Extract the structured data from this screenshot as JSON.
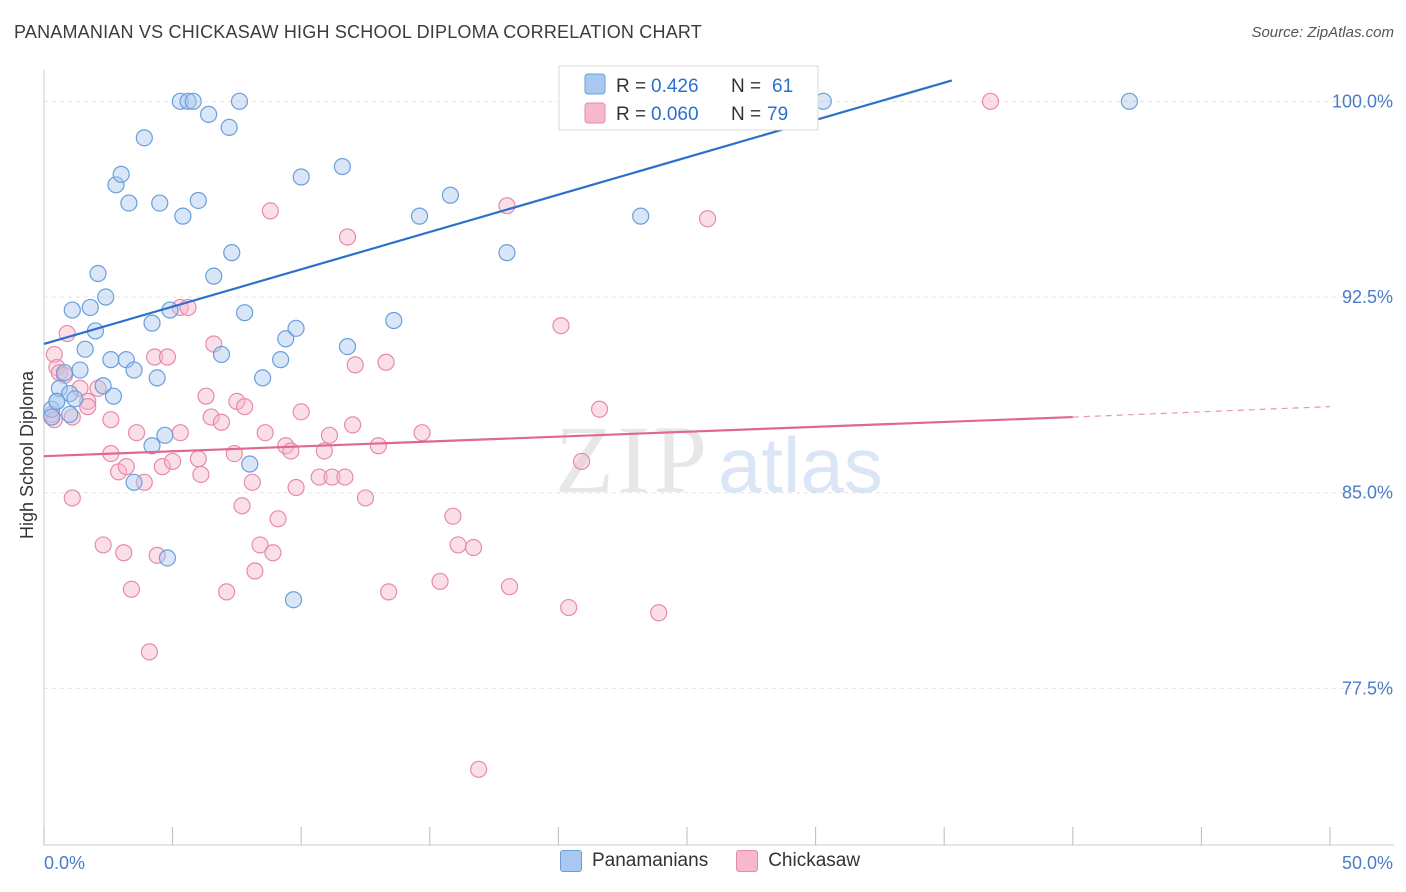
{
  "title": "PANAMANIAN VS CHICKASAW HIGH SCHOOL DIPLOMA CORRELATION CHART",
  "source": "Source: ZipAtlas.com",
  "watermark": {
    "zip": "ZIP",
    "atlas": "atlas"
  },
  "legend_top": [
    {
      "r_label": "R =",
      "r_value": "0.426",
      "n_label": "N =",
      "n_value": "61"
    },
    {
      "r_label": "R =",
      "r_value": "0.060",
      "n_label": "N =",
      "n_value": "79"
    }
  ],
  "legend_bottom": [
    {
      "label": "Panamanians"
    },
    {
      "label": "Chickasaw"
    }
  ],
  "colors": {
    "blue_fill": "#a8c8f0",
    "blue_stroke": "#6a9fdb",
    "blue_line": "#2a70cc",
    "pink_fill": "#f6b9cc",
    "pink_stroke": "#e98aa8",
    "pink_line": "#e06890",
    "tick_label": "#4a7cc8",
    "grid": "#e3e3e3"
  },
  "chart_data": {
    "type": "scatter",
    "title": "PANAMANIAN VS CHICKASAW HIGH SCHOOL DIPLOMA CORRELATION CHART",
    "xlabel": "",
    "ylabel": "High School Diploma",
    "xlim": [
      0,
      50
    ],
    "ylim": [
      71.5,
      101.2
    ],
    "x_tick_labels": [
      {
        "value": 0,
        "label": "0.0%"
      },
      {
        "value": 50,
        "label": "50.0%"
      }
    ],
    "y_ticks": [
      {
        "value": 77.5,
        "label": "77.5%"
      },
      {
        "value": 85.0,
        "label": "85.0%"
      },
      {
        "value": 92.5,
        "label": "92.5%"
      },
      {
        "value": 100.0,
        "label": "100.0%"
      }
    ],
    "series": [
      {
        "name": "Panamanians",
        "R": 0.426,
        "N": 61,
        "trend": {
          "x": [
            0,
            35.3
          ],
          "y": [
            90.7,
            100.8
          ]
        },
        "points": [
          [
            0.3,
            88.2
          ],
          [
            0.3,
            87.9
          ],
          [
            0.5,
            88.5
          ],
          [
            0.6,
            89.0
          ],
          [
            0.8,
            89.6
          ],
          [
            1.0,
            88.8
          ],
          [
            1.1,
            92.0
          ],
          [
            1.2,
            88.6
          ],
          [
            1.4,
            89.7
          ],
          [
            1.6,
            90.5
          ],
          [
            1.8,
            92.1
          ],
          [
            2.0,
            91.2
          ],
          [
            2.1,
            93.4
          ],
          [
            2.3,
            89.1
          ],
          [
            2.4,
            92.5
          ],
          [
            2.7,
            88.7
          ],
          [
            2.6,
            90.1
          ],
          [
            2.8,
            96.8
          ],
          [
            3.0,
            97.2
          ],
          [
            3.2,
            90.1
          ],
          [
            3.3,
            96.1
          ],
          [
            3.5,
            89.7
          ],
          [
            3.5,
            85.4
          ],
          [
            3.9,
            98.6
          ],
          [
            4.2,
            91.5
          ],
          [
            4.4,
            89.4
          ],
          [
            4.5,
            96.1
          ],
          [
            4.7,
            87.2
          ],
          [
            4.8,
            82.5
          ],
          [
            4.9,
            92.0
          ],
          [
            5.3,
            100.0
          ],
          [
            5.4,
            95.6
          ],
          [
            5.6,
            100.0
          ],
          [
            5.8,
            100.0
          ],
          [
            6.0,
            96.2
          ],
          [
            6.4,
            99.5
          ],
          [
            6.6,
            93.3
          ],
          [
            6.9,
            90.3
          ],
          [
            7.2,
            99.0
          ],
          [
            7.3,
            94.2
          ],
          [
            7.6,
            100.0
          ],
          [
            7.8,
            91.9
          ],
          [
            8.0,
            86.1
          ],
          [
            8.5,
            89.4
          ],
          [
            9.2,
            90.1
          ],
          [
            9.4,
            90.9
          ],
          [
            9.7,
            80.9
          ],
          [
            9.8,
            91.3
          ],
          [
            10.0,
            97.1
          ],
          [
            11.6,
            97.5
          ],
          [
            11.8,
            90.6
          ],
          [
            13.6,
            91.6
          ],
          [
            14.6,
            95.6
          ],
          [
            15.8,
            96.4
          ],
          [
            18.0,
            94.2
          ],
          [
            23.2,
            95.6
          ],
          [
            30.3,
            100.0
          ],
          [
            42.2,
            100.0
          ],
          [
            1.0,
            88.0
          ],
          [
            0.5,
            88.5
          ],
          [
            4.2,
            86.8
          ]
        ]
      },
      {
        "name": "Chickasaw",
        "R": 0.06,
        "N": 79,
        "trend": {
          "x": [
            0,
            40
          ],
          "y": [
            86.4,
            87.9
          ]
        },
        "trend_dashed": {
          "x": [
            40,
            50
          ],
          "y": [
            87.9,
            88.3
          ]
        },
        "points": [
          [
            0.3,
            88.0
          ],
          [
            0.4,
            87.8
          ],
          [
            0.4,
            90.3
          ],
          [
            0.5,
            89.8
          ],
          [
            0.6,
            89.6
          ],
          [
            0.8,
            89.5
          ],
          [
            0.9,
            91.1
          ],
          [
            1.1,
            87.9
          ],
          [
            1.1,
            84.8
          ],
          [
            1.4,
            89.0
          ],
          [
            1.7,
            88.5
          ],
          [
            1.7,
            88.3
          ],
          [
            2.1,
            89.0
          ],
          [
            2.3,
            83.0
          ],
          [
            2.6,
            87.8
          ],
          [
            2.6,
            86.5
          ],
          [
            2.9,
            85.8
          ],
          [
            3.1,
            82.7
          ],
          [
            3.2,
            86.0
          ],
          [
            3.4,
            81.3
          ],
          [
            3.6,
            87.3
          ],
          [
            3.9,
            85.4
          ],
          [
            4.1,
            78.9
          ],
          [
            4.3,
            90.2
          ],
          [
            4.4,
            82.6
          ],
          [
            4.6,
            86.0
          ],
          [
            4.8,
            90.2
          ],
          [
            5.0,
            86.2
          ],
          [
            5.3,
            87.3
          ],
          [
            5.3,
            92.1
          ],
          [
            5.6,
            92.1
          ],
          [
            6.0,
            86.3
          ],
          [
            6.1,
            85.7
          ],
          [
            6.3,
            88.7
          ],
          [
            6.5,
            87.9
          ],
          [
            6.6,
            90.7
          ],
          [
            6.9,
            87.7
          ],
          [
            7.1,
            81.2
          ],
          [
            7.4,
            86.5
          ],
          [
            7.5,
            88.5
          ],
          [
            7.7,
            84.5
          ],
          [
            7.8,
            88.3
          ],
          [
            8.1,
            85.4
          ],
          [
            8.2,
            82.0
          ],
          [
            8.4,
            83.0
          ],
          [
            8.6,
            87.3
          ],
          [
            8.8,
            95.8
          ],
          [
            8.9,
            82.7
          ],
          [
            9.1,
            84.0
          ],
          [
            9.4,
            86.8
          ],
          [
            9.6,
            86.6
          ],
          [
            9.8,
            85.2
          ],
          [
            10.0,
            88.1
          ],
          [
            10.7,
            85.6
          ],
          [
            10.9,
            86.6
          ],
          [
            11.1,
            87.2
          ],
          [
            11.2,
            85.6
          ],
          [
            11.7,
            85.6
          ],
          [
            11.8,
            94.8
          ],
          [
            12.0,
            87.6
          ],
          [
            12.1,
            89.9
          ],
          [
            12.5,
            84.8
          ],
          [
            13.0,
            86.8
          ],
          [
            13.3,
            90.0
          ],
          [
            13.4,
            81.2
          ],
          [
            14.7,
            87.3
          ],
          [
            15.4,
            81.6
          ],
          [
            15.9,
            84.1
          ],
          [
            16.1,
            83.0
          ],
          [
            16.7,
            82.9
          ],
          [
            16.9,
            74.4
          ],
          [
            18.1,
            81.4
          ],
          [
            18.0,
            96.0
          ],
          [
            20.1,
            91.4
          ],
          [
            20.4,
            80.6
          ],
          [
            20.9,
            86.2
          ],
          [
            21.6,
            88.2
          ],
          [
            23.9,
            80.4
          ],
          [
            36.8,
            100.0
          ]
        ]
      }
    ],
    "extra_pink": [
      [
        25.8,
        95.5
      ]
    ]
  }
}
